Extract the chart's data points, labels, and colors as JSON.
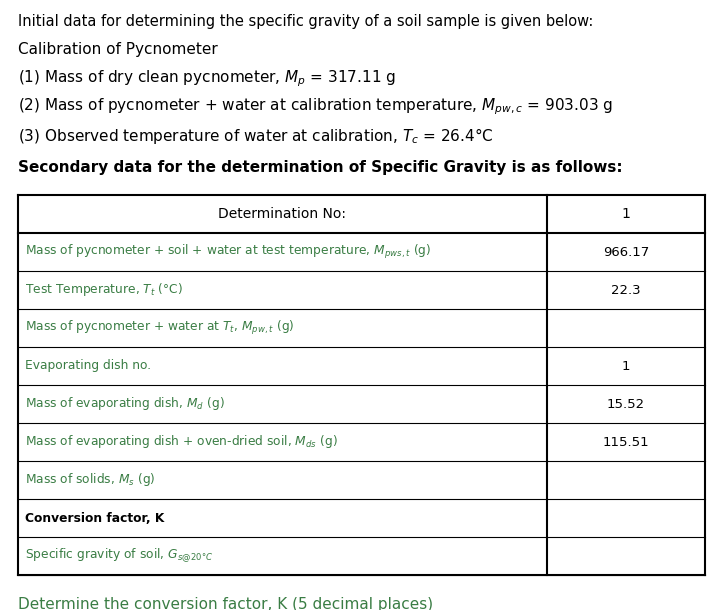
{
  "title_line": "Initial data for determining the specific gravity of a soil sample is given below:",
  "calib_header": "Calibration of Pycnometer",
  "secondary_header": "Secondary data for the determination of Specific Gravity is as follows:",
  "table_col_header": "Determination No:",
  "table_col_value": "1",
  "table_rows": [
    [
      "Mass of pycnometer + soil + water at test temperature, $M_{pws,t}$ (g)",
      "966.17",
      "green",
      "normal"
    ],
    [
      "Test Temperature, $T_t$ (°C)",
      "22.3",
      "green",
      "normal"
    ],
    [
      "Mass of pycnometer + water at $T_t$, $M_{pw,t}$ (g)",
      "",
      "green",
      "normal"
    ],
    [
      "Evaporating dish no.",
      "1",
      "green",
      "normal"
    ],
    [
      "Mass of evaporating dish, $M_d$ (g)",
      "15.52",
      "green",
      "normal"
    ],
    [
      "Mass of evaporating dish + oven-dried soil, $M_{ds}$ (g)",
      "115.51",
      "green",
      "normal"
    ],
    [
      "Mass of solids, $M_s$ (g)",
      "",
      "green",
      "normal"
    ],
    [
      "Conversion factor, K",
      "",
      "black",
      "bold"
    ],
    [
      "Specific gravity of soil, $G_{s@20\\degree C}$",
      "",
      "green",
      "normal"
    ]
  ],
  "footer_line": "Determine the conversion factor, K (5 decimal places)",
  "bg_color": "#ffffff",
  "text_color": "#000000",
  "green_color": "#3a7d44",
  "fig_width": 7.23,
  "fig_height": 6.1,
  "dpi": 100
}
